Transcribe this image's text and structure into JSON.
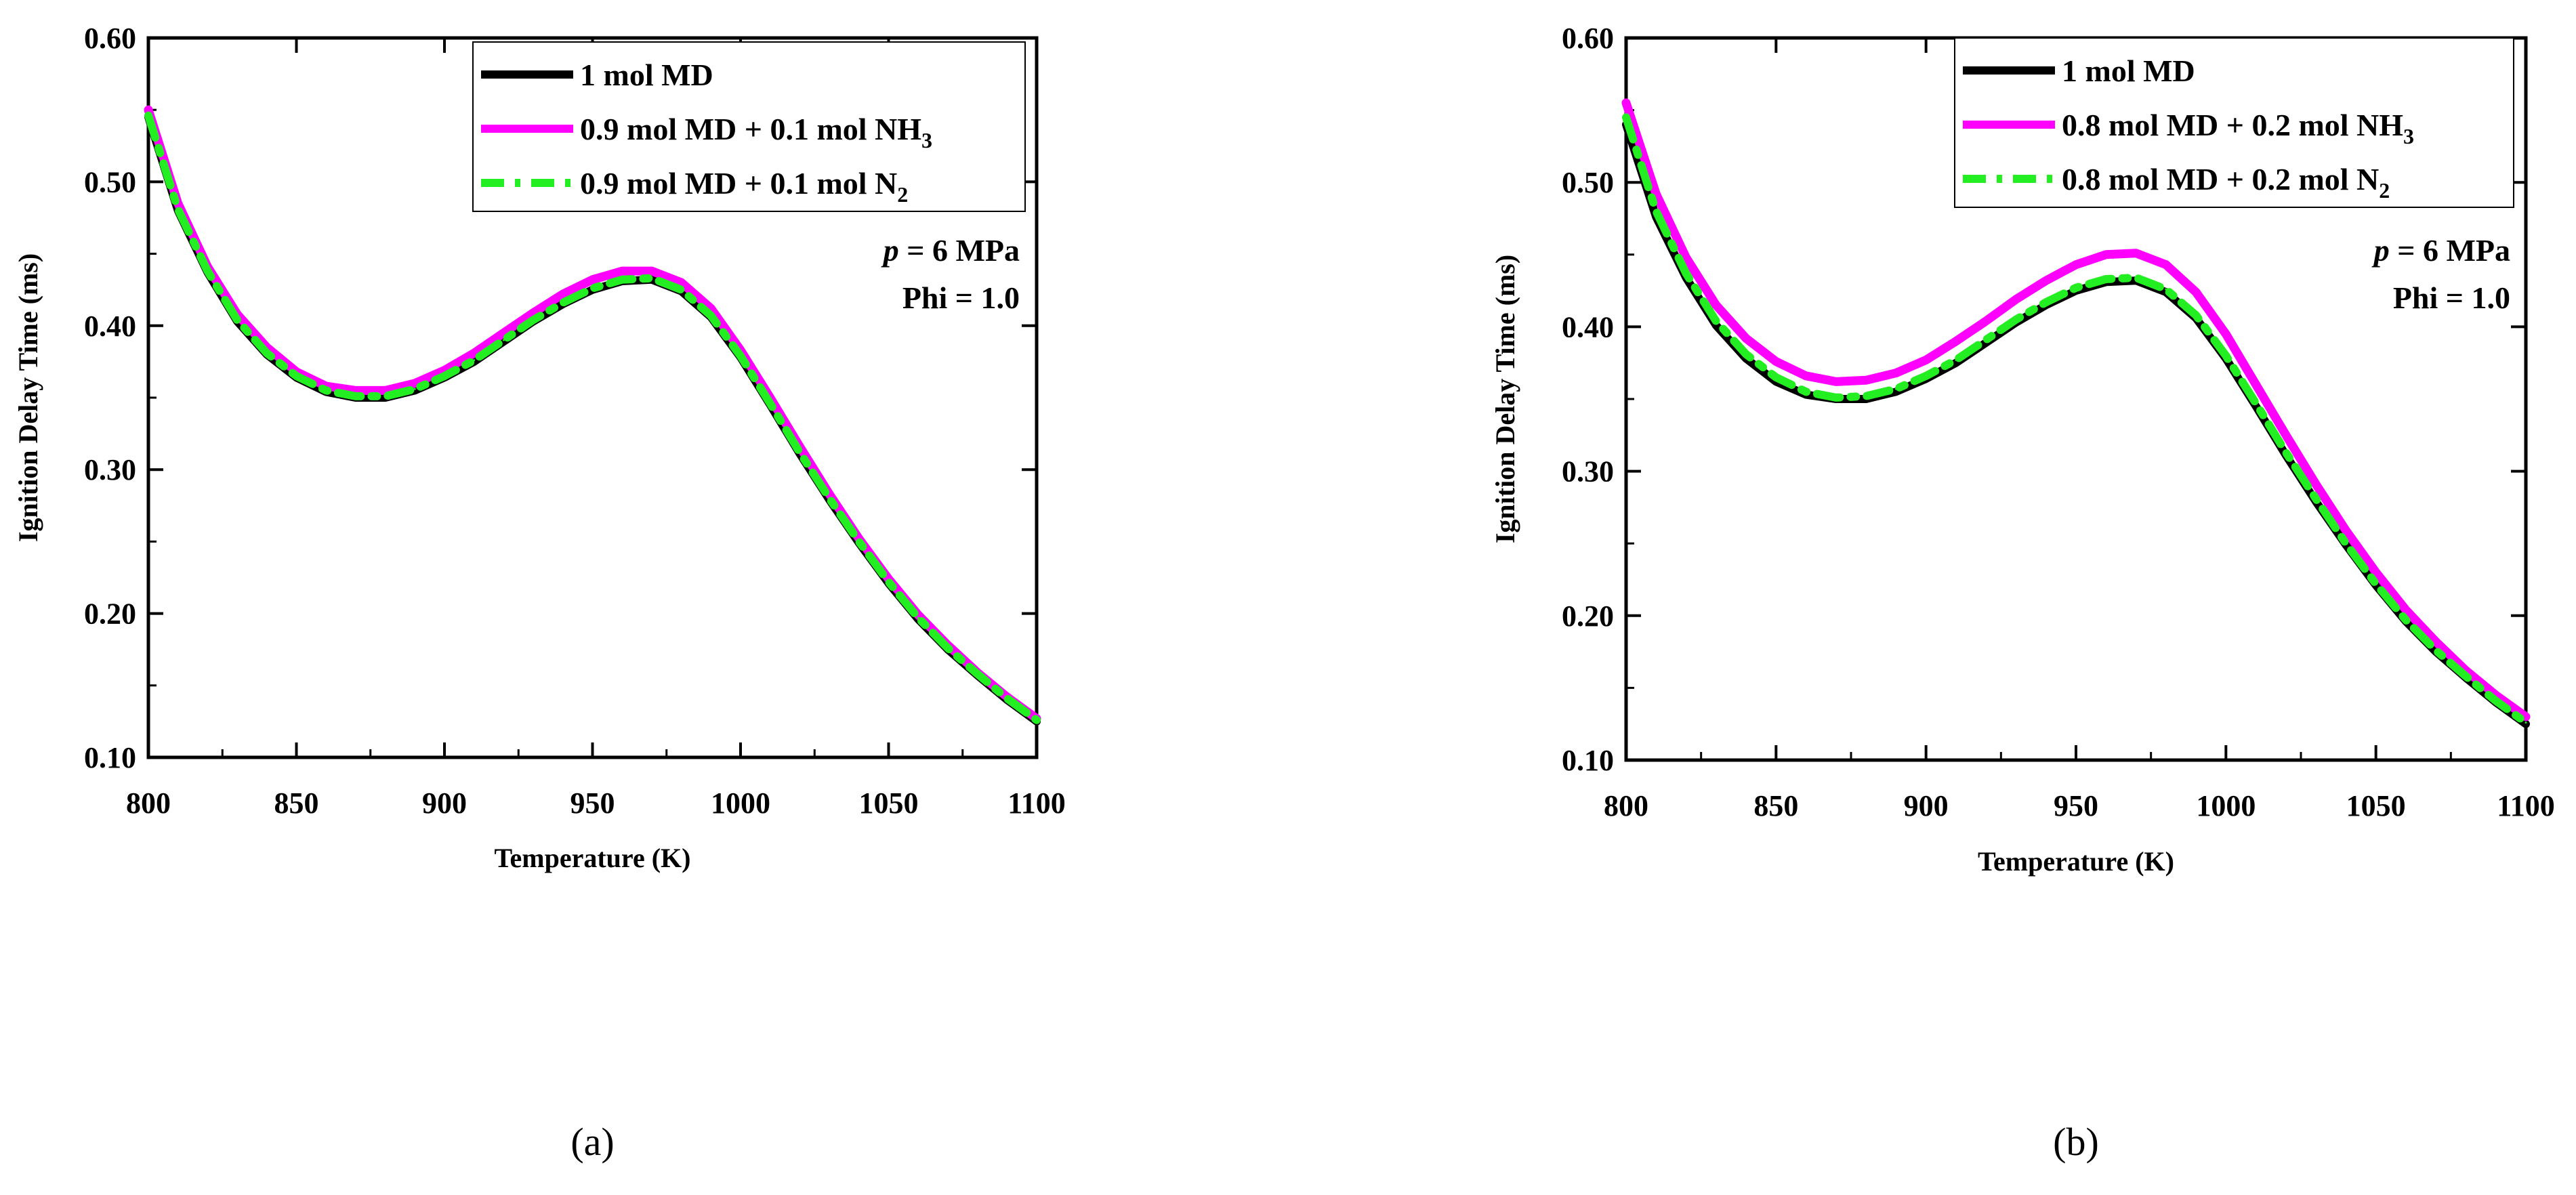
{
  "chart_data": [
    {
      "type": "line",
      "panel_label": "(a)",
      "xlabel": "Temperature (K)",
      "ylabel": "Ignition Delay Time (ms)",
      "xlim": [
        800,
        1100
      ],
      "ylim": [
        0.1,
        0.6
      ],
      "xticks": [
        800,
        850,
        900,
        950,
        1000,
        1050,
        1100
      ],
      "yticks": [
        "0.10",
        "0.20",
        "0.30",
        "0.40",
        "0.50",
        "0.60"
      ],
      "legend_position": "top-right",
      "annotation": {
        "p_symbol": "p",
        "p_value": " = 6 MPa",
        "phi": "Phi = 1.0"
      },
      "series": [
        {
          "name": "1 mol MD",
          "legend": {
            "main": "1 mol MD",
            "sub": ""
          },
          "color": "#000000",
          "dash": "solid",
          "x": [
            800,
            810,
            820,
            830,
            840,
            850,
            860,
            870,
            880,
            890,
            900,
            910,
            920,
            930,
            940,
            950,
            960,
            970,
            980,
            990,
            1000,
            1010,
            1020,
            1030,
            1040,
            1050,
            1060,
            1070,
            1080,
            1090,
            1100
          ],
          "y": [
            0.545,
            0.48,
            0.437,
            0.403,
            0.38,
            0.364,
            0.354,
            0.35,
            0.35,
            0.355,
            0.364,
            0.375,
            0.389,
            0.403,
            0.415,
            0.425,
            0.431,
            0.432,
            0.424,
            0.406,
            0.378,
            0.345,
            0.311,
            0.279,
            0.249,
            0.221,
            0.196,
            0.175,
            0.157,
            0.14,
            0.125
          ]
        },
        {
          "name": "0.9 mol MD + 0.1 mol NH3",
          "legend": {
            "main": "0.9 mol MD + 0.1 mol NH",
            "sub": "3"
          },
          "color": "#ff00ff",
          "dash": "solid",
          "x": [
            800,
            810,
            820,
            830,
            840,
            850,
            860,
            870,
            880,
            890,
            900,
            910,
            920,
            930,
            940,
            950,
            960,
            970,
            980,
            990,
            1000,
            1010,
            1020,
            1030,
            1040,
            1050,
            1060,
            1070,
            1080,
            1090,
            1100
          ],
          "y": [
            0.55,
            0.485,
            0.441,
            0.408,
            0.385,
            0.368,
            0.358,
            0.355,
            0.355,
            0.36,
            0.369,
            0.381,
            0.395,
            0.409,
            0.422,
            0.432,
            0.438,
            0.438,
            0.43,
            0.412,
            0.383,
            0.35,
            0.316,
            0.283,
            0.252,
            0.224,
            0.199,
            0.178,
            0.159,
            0.142,
            0.127
          ]
        },
        {
          "name": "0.9 mol MD + 0.1 mol N2",
          "legend": {
            "main": "0.9 mol MD + 0.1 mol N",
            "sub": "2"
          },
          "color": "#22ee22",
          "dash": "dashdot",
          "x": [
            800,
            810,
            820,
            830,
            840,
            850,
            860,
            870,
            880,
            890,
            900,
            910,
            920,
            930,
            940,
            950,
            960,
            970,
            980,
            990,
            1000,
            1010,
            1020,
            1030,
            1040,
            1050,
            1060,
            1070,
            1080,
            1090,
            1100
          ],
          "y": [
            0.546,
            0.481,
            0.438,
            0.404,
            0.381,
            0.365,
            0.355,
            0.351,
            0.351,
            0.356,
            0.365,
            0.376,
            0.39,
            0.404,
            0.416,
            0.426,
            0.432,
            0.433,
            0.425,
            0.407,
            0.379,
            0.346,
            0.312,
            0.28,
            0.25,
            0.222,
            0.197,
            0.176,
            0.158,
            0.141,
            0.126
          ]
        }
      ]
    },
    {
      "type": "line",
      "panel_label": "(b)",
      "xlabel": "Temperature (K)",
      "ylabel": "Ignition Delay Time (ms)",
      "xlim": [
        800,
        1100
      ],
      "ylim": [
        0.1,
        0.6
      ],
      "xticks": [
        800,
        850,
        900,
        950,
        1000,
        1050,
        1100
      ],
      "yticks": [
        "0.10",
        "0.20",
        "0.30",
        "0.40",
        "0.50",
        "0.60"
      ],
      "legend_position": "top-right",
      "annotation": {
        "p_symbol": "p",
        "p_value": " = 6 MPa",
        "phi": "Phi = 1.0"
      },
      "series": [
        {
          "name": "1 mol MD",
          "legend": {
            "main": "1 mol MD",
            "sub": ""
          },
          "color": "#000000",
          "dash": "solid",
          "x": [
            800,
            810,
            820,
            830,
            840,
            850,
            860,
            870,
            880,
            890,
            900,
            910,
            920,
            930,
            940,
            950,
            960,
            970,
            980,
            990,
            1000,
            1010,
            1020,
            1030,
            1040,
            1050,
            1060,
            1070,
            1080,
            1090,
            1100
          ],
          "y": [
            0.54,
            0.476,
            0.434,
            0.401,
            0.378,
            0.362,
            0.353,
            0.35,
            0.35,
            0.355,
            0.364,
            0.375,
            0.389,
            0.403,
            0.415,
            0.425,
            0.431,
            0.432,
            0.424,
            0.406,
            0.378,
            0.345,
            0.311,
            0.279,
            0.249,
            0.221,
            0.196,
            0.175,
            0.157,
            0.14,
            0.125
          ]
        },
        {
          "name": "0.8 mol MD + 0.2 mol NH3",
          "legend": {
            "main": "0.8 mol MD + 0.2 mol NH",
            "sub": "3"
          },
          "color": "#ff00ff",
          "dash": "solid",
          "x": [
            800,
            810,
            820,
            830,
            840,
            850,
            860,
            870,
            880,
            890,
            900,
            910,
            920,
            930,
            940,
            950,
            960,
            970,
            980,
            990,
            1000,
            1010,
            1020,
            1030,
            1040,
            1050,
            1060,
            1070,
            1080,
            1090,
            1100
          ],
          "y": [
            0.555,
            0.492,
            0.448,
            0.415,
            0.392,
            0.376,
            0.366,
            0.362,
            0.363,
            0.368,
            0.377,
            0.39,
            0.404,
            0.419,
            0.432,
            0.443,
            0.45,
            0.451,
            0.443,
            0.424,
            0.395,
            0.36,
            0.325,
            0.291,
            0.259,
            0.23,
            0.204,
            0.182,
            0.162,
            0.145,
            0.13
          ]
        },
        {
          "name": "0.8 mol MD + 0.2 mol N2",
          "legend": {
            "main": "0.8 mol MD + 0.2 mol N",
            "sub": "2"
          },
          "color": "#22ee22",
          "dash": "dashdot",
          "x": [
            800,
            810,
            820,
            830,
            840,
            850,
            860,
            870,
            880,
            890,
            900,
            910,
            920,
            930,
            940,
            950,
            960,
            970,
            980,
            990,
            1000,
            1010,
            1020,
            1030,
            1040,
            1050,
            1060,
            1070,
            1080,
            1090,
            1100
          ],
          "y": [
            0.545,
            0.48,
            0.437,
            0.404,
            0.381,
            0.365,
            0.355,
            0.351,
            0.352,
            0.357,
            0.366,
            0.377,
            0.391,
            0.405,
            0.417,
            0.427,
            0.433,
            0.434,
            0.426,
            0.408,
            0.38,
            0.347,
            0.313,
            0.281,
            0.25,
            0.222,
            0.197,
            0.176,
            0.158,
            0.141,
            0.126
          ]
        }
      ]
    }
  ]
}
